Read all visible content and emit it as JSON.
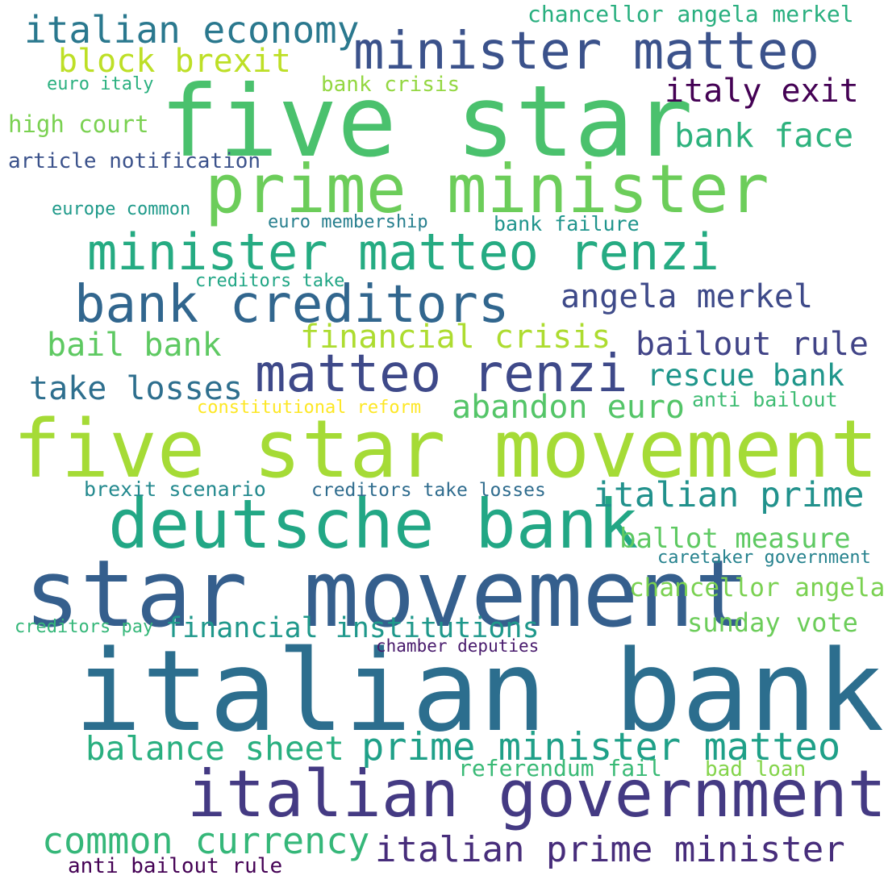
{
  "words": [
    {
      "text": "italian bank",
      "color": "#2c6e8e"
    },
    {
      "text": "five star movement",
      "color": "#a5db36"
    },
    {
      "text": "star movement",
      "color": "#355f8d"
    },
    {
      "text": "five star",
      "color": "#4ac16d"
    },
    {
      "text": "italian government",
      "color": "#443a83"
    },
    {
      "text": "deutsche bank",
      "color": "#22a785"
    },
    {
      "text": "prime minister",
      "color": "#6ccd5a"
    },
    {
      "text": "minister matteo",
      "color": "#3b528b"
    },
    {
      "text": "bank creditors",
      "color": "#31668e"
    },
    {
      "text": "matteo renzi",
      "color": "#3e4989"
    },
    {
      "text": "minister matteo renzi",
      "color": "#25ab82"
    },
    {
      "text": "prime minister matteo",
      "color": "#1fa088"
    },
    {
      "text": "italian prime minister",
      "color": "#472d7b"
    },
    {
      "text": "italian economy",
      "color": "#2a788e"
    },
    {
      "text": "common currency",
      "color": "#35b779"
    },
    {
      "text": "italian prime",
      "color": "#21918c"
    },
    {
      "text": "balance sheet",
      "color": "#29af7f"
    },
    {
      "text": "bank face",
      "color": "#2db27d"
    },
    {
      "text": "angela merkel",
      "color": "#3e4a89"
    },
    {
      "text": "bailout rule",
      "color": "#414487"
    },
    {
      "text": "rescue bank",
      "color": "#1f968b"
    },
    {
      "text": "abandon euro",
      "color": "#54c568"
    },
    {
      "text": "take losses",
      "color": "#2e6f8e"
    },
    {
      "text": "financial crisis",
      "color": "#addc30"
    },
    {
      "text": "block brexit",
      "color": "#bddf26"
    },
    {
      "text": "italy exit",
      "color": "#440154"
    },
    {
      "text": "bail bank",
      "color": "#5ec962"
    },
    {
      "text": "ballot measure",
      "color": "#5ec962"
    },
    {
      "text": "financial institutions",
      "color": "#1f988b"
    },
    {
      "text": "chancellor angela",
      "color": "#7ad151"
    },
    {
      "text": "sunday vote",
      "color": "#6ccd5a"
    },
    {
      "text": "chancellor angela merkel",
      "color": "#29af7f"
    },
    {
      "text": "high court",
      "color": "#7ad151"
    },
    {
      "text": "bank crisis",
      "color": "#93d741"
    },
    {
      "text": "euro italy",
      "color": "#2ab07f"
    },
    {
      "text": "article notification",
      "color": "#3b528b"
    },
    {
      "text": "europe common",
      "color": "#1f9a8a"
    },
    {
      "text": "euro membership",
      "color": "#277f8e"
    },
    {
      "text": "bank failure",
      "color": "#1f948c"
    },
    {
      "text": "creditors take",
      "color": "#21a685"
    },
    {
      "text": "constitutional reform",
      "color": "#fde725"
    },
    {
      "text": "anti bailout",
      "color": "#3fbc73"
    },
    {
      "text": "brexit scenario",
      "color": "#23898e"
    },
    {
      "text": "creditors take losses",
      "color": "#2f6c8e"
    },
    {
      "text": "caretaker government",
      "color": "#26828e"
    },
    {
      "text": "creditors pay",
      "color": "#35b779"
    },
    {
      "text": "chamber deputies",
      "color": "#481a6c"
    },
    {
      "text": "referendum fail",
      "color": "#3aba76"
    },
    {
      "text": "bad loan",
      "color": "#84d44b"
    },
    {
      "text": "anti bailout rule",
      "color": "#440154"
    }
  ]
}
